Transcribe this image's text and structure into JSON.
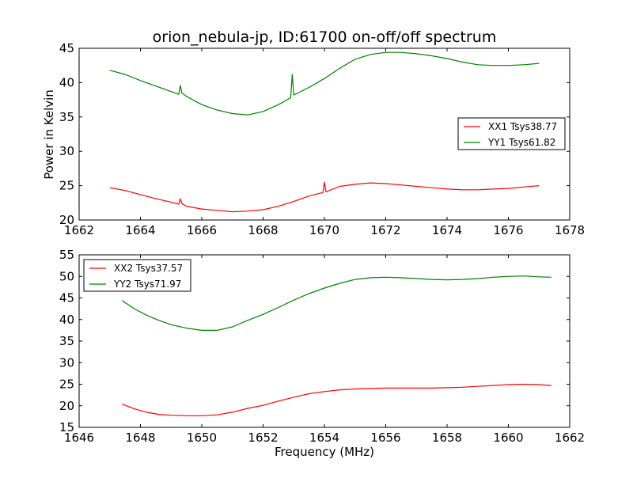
{
  "chart_data": [
    {
      "type": "line",
      "title": "orion_nebula-jp, ID:61700 on-off/off spectrum",
      "xlabel": "",
      "ylabel": "Power in Kelvin",
      "xlim": [
        1662,
        1678
      ],
      "ylim": [
        20,
        45
      ],
      "xticks": [
        "1662",
        "1664",
        "1666",
        "1668",
        "1670",
        "1672",
        "1674",
        "1676",
        "1678"
      ],
      "yticks": [
        "20",
        "25",
        "30",
        "35",
        "40",
        "45"
      ],
      "legend_position": "right",
      "series": [
        {
          "name": "XX1 Tsys38.77",
          "color": "#ff0000",
          "x": [
            1663.0,
            1663.5,
            1664.0,
            1664.5,
            1665.0,
            1665.25,
            1665.3,
            1665.35,
            1665.5,
            1666.0,
            1666.5,
            1667.0,
            1667.5,
            1668.0,
            1668.5,
            1669.0,
            1669.5,
            1669.95,
            1670.0,
            1670.05,
            1670.5,
            1671.0,
            1671.5,
            1672.0,
            1672.5,
            1673.0,
            1673.5,
            1674.0,
            1674.5,
            1675.0,
            1675.5,
            1676.0,
            1676.5,
            1677.0
          ],
          "y": [
            24.7,
            24.3,
            23.7,
            23.1,
            22.6,
            22.3,
            23.1,
            22.4,
            22.0,
            21.6,
            21.4,
            21.2,
            21.3,
            21.5,
            22.0,
            22.7,
            23.5,
            24.0,
            25.5,
            24.1,
            24.9,
            25.2,
            25.4,
            25.3,
            25.1,
            24.9,
            24.7,
            24.5,
            24.4,
            24.4,
            24.5,
            24.6,
            24.8,
            25.0
          ]
        },
        {
          "name": "YY1 Tsys61.82",
          "color": "#008000",
          "x": [
            1663.0,
            1663.5,
            1664.0,
            1664.5,
            1665.0,
            1665.25,
            1665.3,
            1665.35,
            1665.5,
            1666.0,
            1666.5,
            1667.0,
            1667.5,
            1668.0,
            1668.5,
            1668.9,
            1668.95,
            1669.0,
            1669.5,
            1670.0,
            1670.5,
            1671.0,
            1671.5,
            1672.0,
            1672.5,
            1673.0,
            1673.5,
            1674.0,
            1674.5,
            1675.0,
            1675.5,
            1676.0,
            1676.5,
            1677.0
          ],
          "y": [
            41.8,
            41.2,
            40.3,
            39.5,
            38.7,
            38.3,
            39.6,
            38.5,
            38.0,
            36.8,
            36.0,
            35.5,
            35.3,
            35.8,
            36.8,
            37.8,
            41.2,
            38.2,
            39.3,
            40.6,
            42.1,
            43.4,
            44.1,
            44.4,
            44.4,
            44.2,
            43.9,
            43.5,
            43.0,
            42.6,
            42.5,
            42.5,
            42.6,
            42.8
          ]
        }
      ]
    },
    {
      "type": "line",
      "title": "",
      "xlabel": "Frequency (MHz)",
      "ylabel": "",
      "xlim": [
        1646,
        1662
      ],
      "ylim": [
        15,
        55
      ],
      "xticks": [
        "1646",
        "1648",
        "1650",
        "1652",
        "1654",
        "1656",
        "1658",
        "1660",
        "1662"
      ],
      "yticks": [
        "15",
        "20",
        "25",
        "30",
        "35",
        "40",
        "45",
        "50",
        "55"
      ],
      "legend_position": "upper-left",
      "series": [
        {
          "name": "XX2 Tsys37.57",
          "color": "#ff0000",
          "x": [
            1647.4,
            1647.8,
            1648.2,
            1648.6,
            1649.0,
            1649.5,
            1650.0,
            1650.5,
            1651.0,
            1651.5,
            1652.0,
            1652.5,
            1653.0,
            1653.5,
            1654.0,
            1654.5,
            1655.0,
            1655.5,
            1656.0,
            1656.5,
            1657.0,
            1657.5,
            1658.0,
            1658.5,
            1659.0,
            1659.5,
            1660.0,
            1660.5,
            1661.0,
            1661.4
          ],
          "y": [
            20.4,
            19.3,
            18.5,
            18.0,
            17.8,
            17.7,
            17.7,
            17.9,
            18.5,
            19.4,
            20.1,
            21.1,
            22.0,
            22.8,
            23.3,
            23.7,
            23.9,
            24.0,
            24.1,
            24.1,
            24.1,
            24.1,
            24.2,
            24.3,
            24.5,
            24.7,
            24.9,
            25.0,
            24.9,
            24.7
          ]
        },
        {
          "name": "YY2 Tsys71.97",
          "color": "#008000",
          "x": [
            1647.4,
            1647.8,
            1648.2,
            1648.6,
            1649.0,
            1649.5,
            1650.0,
            1650.5,
            1651.0,
            1651.5,
            1652.0,
            1652.5,
            1653.0,
            1653.5,
            1654.0,
            1654.5,
            1655.0,
            1655.5,
            1656.0,
            1656.5,
            1657.0,
            1657.5,
            1658.0,
            1658.5,
            1659.0,
            1659.5,
            1660.0,
            1660.5,
            1661.0,
            1661.4
          ],
          "y": [
            44.4,
            42.5,
            41.0,
            39.8,
            38.8,
            38.0,
            37.5,
            37.5,
            38.3,
            39.8,
            41.2,
            42.8,
            44.5,
            46.0,
            47.3,
            48.4,
            49.3,
            49.7,
            49.8,
            49.7,
            49.5,
            49.3,
            49.2,
            49.3,
            49.5,
            49.8,
            50.0,
            50.1,
            49.9,
            49.8
          ]
        }
      ]
    }
  ]
}
